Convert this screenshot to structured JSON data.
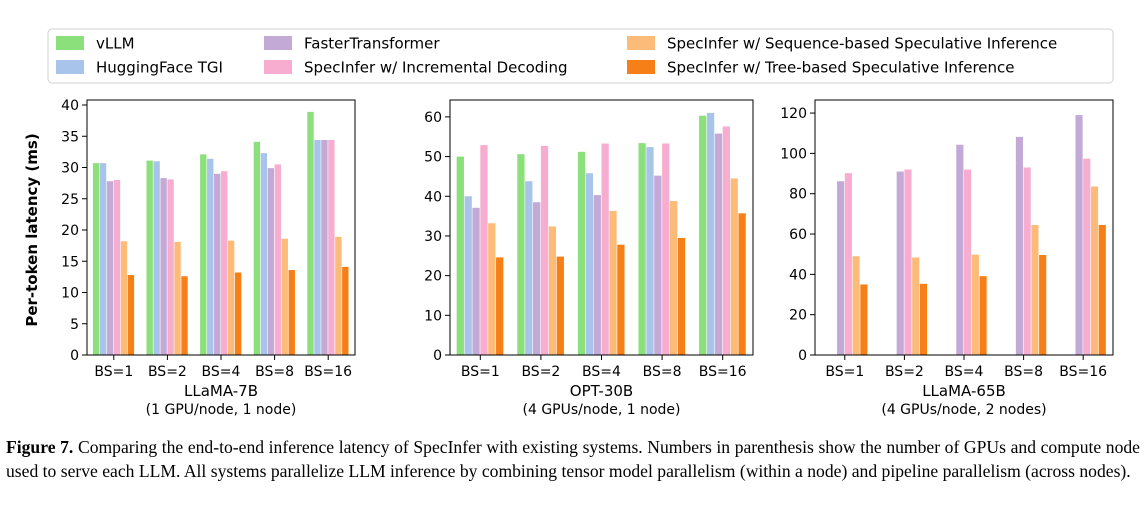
{
  "legend": [
    {
      "name": "vLLM",
      "color": "#8be07c"
    },
    {
      "name": "HuggingFace TGI",
      "color": "#a9c4ea"
    },
    {
      "name": "FasterTransformer",
      "color": "#c3a9d6"
    },
    {
      "name": "SpecInfer w/ Incremental Decoding",
      "color": "#f7adcf"
    },
    {
      "name": "SpecInfer w/ Sequence-based Speculative Inference",
      "color": "#fdbb7a"
    },
    {
      "name": "SpecInfer w/ Tree-based Speculative Inference",
      "color": "#f77f17"
    }
  ],
  "chart_data": [
    {
      "type": "bar",
      "title": "LLaMA-7B",
      "subtitle": "(1 GPU/node, 1 node)",
      "ylabel": "Per-token latency (ms)",
      "ylim": [
        0,
        40
      ],
      "yticks": [
        0,
        5,
        10,
        15,
        20,
        25,
        30,
        35,
        40
      ],
      "categories": [
        "BS=1",
        "BS=2",
        "BS=4",
        "BS=8",
        "BS=16"
      ],
      "series": [
        {
          "name": "vLLM",
          "values": [
            30.7,
            31.1,
            32.1,
            34.1,
            38.9
          ]
        },
        {
          "name": "HuggingFace TGI",
          "values": [
            30.7,
            31.0,
            31.4,
            32.3,
            34.4
          ]
        },
        {
          "name": "FasterTransformer",
          "values": [
            27.8,
            28.3,
            29.0,
            29.9,
            34.4
          ]
        },
        {
          "name": "SpecInfer w/ Incremental Decoding",
          "values": [
            28.0,
            28.1,
            29.4,
            30.5,
            34.4
          ]
        },
        {
          "name": "SpecInfer w/ Sequence-based Speculative Inference",
          "values": [
            18.2,
            18.1,
            18.3,
            18.6,
            18.9
          ]
        },
        {
          "name": "SpecInfer w/ Tree-based Speculative Inference",
          "values": [
            12.8,
            12.6,
            13.2,
            13.6,
            14.1
          ]
        }
      ]
    },
    {
      "type": "bar",
      "title": "OPT-30B",
      "subtitle": "(4 GPUs/node, 1 node)",
      "ylim": [
        0,
        63
      ],
      "yticks": [
        0,
        10,
        20,
        30,
        40,
        50,
        60
      ],
      "categories": [
        "BS=1",
        "BS=2",
        "BS=4",
        "BS=8",
        "BS=16"
      ],
      "series": [
        {
          "name": "vLLM",
          "values": [
            50.0,
            50.6,
            51.2,
            53.4,
            60.3
          ]
        },
        {
          "name": "HuggingFace TGI",
          "values": [
            40.0,
            43.8,
            45.8,
            52.4,
            61.0
          ]
        },
        {
          "name": "FasterTransformer",
          "values": [
            37.1,
            38.5,
            40.3,
            45.2,
            55.8
          ]
        },
        {
          "name": "SpecInfer w/ Incremental Decoding",
          "values": [
            52.9,
            52.7,
            53.3,
            53.3,
            57.6
          ]
        },
        {
          "name": "SpecInfer w/ Sequence-based Speculative Inference",
          "values": [
            33.2,
            32.4,
            36.3,
            38.8,
            44.5
          ]
        },
        {
          "name": "SpecInfer w/ Tree-based Speculative Inference",
          "values": [
            24.6,
            24.8,
            27.8,
            29.5,
            35.7
          ]
        }
      ]
    },
    {
      "type": "bar",
      "title": "LLaMA-65B",
      "subtitle": "(4 GPUs/node, 2 nodes)",
      "ylim": [
        0,
        124
      ],
      "yticks": [
        0,
        20,
        40,
        60,
        80,
        100,
        120
      ],
      "categories": [
        "BS=1",
        "BS=2",
        "BS=4",
        "BS=8",
        "BS=16"
      ],
      "series": [
        {
          "name": "vLLM",
          "values": [
            null,
            null,
            null,
            null,
            null
          ]
        },
        {
          "name": "HuggingFace TGI",
          "values": [
            null,
            null,
            null,
            null,
            null
          ]
        },
        {
          "name": "FasterTransformer",
          "values": [
            86.2,
            91.0,
            104.3,
            108.2,
            119.0
          ]
        },
        {
          "name": "SpecInfer w/ Incremental Decoding",
          "values": [
            90.2,
            92.0,
            92.0,
            93.0,
            97.4
          ]
        },
        {
          "name": "SpecInfer w/ Sequence-based Speculative Inference",
          "values": [
            49.0,
            48.4,
            49.8,
            64.5,
            83.6
          ]
        },
        {
          "name": "SpecInfer w/ Tree-based Speculative Inference",
          "values": [
            35.0,
            35.3,
            39.1,
            49.6,
            64.5
          ]
        }
      ]
    }
  ],
  "caption": {
    "label": "Figure 7.",
    "text": "Comparing the end-to-end inference latency of SpecInfer with existing systems. Numbers in parenthesis show the number of GPUs and compute node used to serve each LLM. All systems parallelize LLM inference by combining tensor model parallelism (within a node) and pipeline parallelism (across nodes)."
  }
}
